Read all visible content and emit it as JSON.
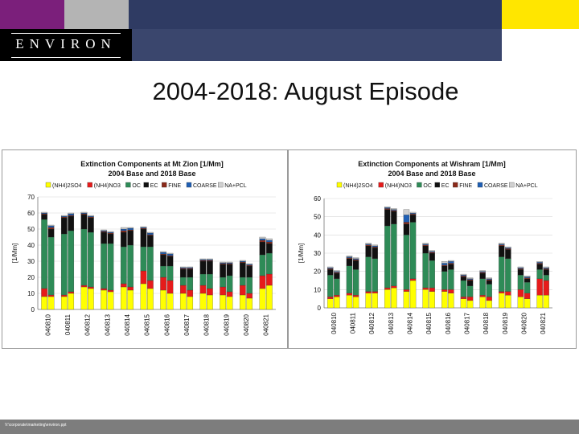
{
  "header": {
    "logo": "ENVIRON",
    "colors": {
      "purple": "#7b1f7b",
      "gray": "#b4b4b4",
      "navy": "#2f3b63",
      "yellow": "#ffe600"
    }
  },
  "slide": {
    "title": "2004-2018: August Episode"
  },
  "footer": {
    "path": "V:\\corporate\\marketing\\environ.ppt"
  },
  "legend": [
    {
      "name": "(NH4)2SO4",
      "color": "#ffff00"
    },
    {
      "name": "(NH4)NO3",
      "color": "#e61b1b"
    },
    {
      "name": "OC",
      "color": "#2e8b57"
    },
    {
      "name": "EC",
      "color": "#111111"
    },
    {
      "name": "FINE",
      "color": "#8b2a1a"
    },
    {
      "name": "COARSE",
      "color": "#1f5fb4"
    },
    {
      "name": "NA+PCL",
      "color": "#d0d0d0"
    }
  ],
  "chart_data": [
    {
      "type": "bar",
      "stacked": true,
      "title": "Extinction Components at Mt Zion [1/Mm]",
      "subtitle": "2004 Base and 2018 Base",
      "ylabel": "[1/Mm]",
      "ylim": [
        0,
        70
      ],
      "yticks": [
        0,
        10,
        20,
        30,
        40,
        50,
        60,
        70
      ],
      "categories": [
        "040810",
        "040811",
        "040812",
        "040813",
        "040814",
        "040815",
        "040816",
        "040817",
        "040818",
        "040819",
        "040820",
        "040821"
      ],
      "groups": [
        "2004",
        "2018"
      ],
      "series_names": [
        "(NH4)2SO4",
        "(NH4)NO3",
        "OC",
        "EC",
        "FINE",
        "COARSE",
        "NA+PCL"
      ],
      "data": [
        [
          [
            8,
            5,
            43,
            3,
            0.5,
            0.5,
            0.5
          ],
          [
            8,
            1,
            36,
            5,
            1,
            1,
            0.5
          ]
        ],
        [
          [
            8,
            1,
            38,
            10,
            0.5,
            0.5,
            0.5
          ],
          [
            10,
            1,
            38,
            9,
            0.5,
            1,
            0.5
          ]
        ],
        [
          [
            14,
            1,
            35,
            9,
            0.5,
            0.5,
            0.5
          ],
          [
            13,
            1,
            34,
            9,
            0.5,
            0.5,
            0.5
          ]
        ],
        [
          [
            12,
            1,
            28,
            7,
            0.5,
            0.5,
            0.5
          ],
          [
            11,
            1,
            29,
            6,
            0.5,
            0.5,
            0.5
          ]
        ],
        [
          [
            14,
            2,
            23,
            9,
            1,
            1,
            1
          ],
          [
            12,
            2,
            26,
            9,
            0.5,
            1,
            0.5
          ]
        ],
        [
          [
            16,
            8,
            15,
            11,
            0.5,
            0.5,
            0.5
          ],
          [
            13,
            5,
            21,
            7,
            0.5,
            1,
            0.5
          ]
        ],
        [
          [
            12,
            8,
            7,
            7,
            0.5,
            1,
            0.5
          ],
          [
            10,
            8,
            9,
            6,
            0.5,
            1,
            0.5
          ]
        ],
        [
          [
            10,
            5,
            5,
            5,
            0.5,
            0.5,
            0.5
          ],
          [
            8,
            4,
            8,
            5,
            0.5,
            0.5,
            0.5
          ]
        ],
        [
          [
            10,
            5,
            7,
            8,
            0.5,
            0.5,
            0.5
          ],
          [
            9,
            4,
            9,
            8,
            0.5,
            0.5,
            0.5
          ]
        ],
        [
          [
            9,
            5,
            6,
            8,
            0.5,
            0.5,
            0.5
          ],
          [
            8,
            3,
            10,
            7,
            0.5,
            0.5,
            0.5
          ]
        ],
        [
          [
            9,
            6,
            5,
            9,
            0.5,
            0.5,
            0.5
          ],
          [
            7,
            3,
            10,
            7,
            0.5,
            0.5,
            0.5
          ]
        ],
        [
          [
            13,
            8,
            13,
            8,
            1,
            1,
            1
          ],
          [
            15,
            7,
            13,
            6,
            1,
            1,
            1
          ]
        ]
      ]
    },
    {
      "type": "bar",
      "stacked": true,
      "title": "Extinction Components at Wishram [1/Mm]",
      "subtitle": "2004 Base and 2018 Base",
      "ylabel": "[1/Mm]",
      "ylim": [
        0,
        60
      ],
      "yticks": [
        0,
        10,
        20,
        30,
        40,
        50,
        60
      ],
      "categories": [
        "040810",
        "040811",
        "040812",
        "040813",
        "040814",
        "040815",
        "040816",
        "040817",
        "040818",
        "040819",
        "040820",
        "040821"
      ],
      "groups": [
        "2004",
        "2018"
      ],
      "series_names": [
        "(NH4)2SO4",
        "(NH4)NO3",
        "OC",
        "EC",
        "FINE",
        "COARSE",
        "NA+PCL"
      ],
      "data": [
        [
          [
            5,
            1,
            12,
            3,
            0.5,
            0.5,
            0.5
          ],
          [
            6,
            1,
            9,
            3,
            0.5,
            0.5,
            0.5
          ]
        ],
        [
          [
            7,
            1,
            15,
            4,
            0.5,
            0.5,
            0.5
          ],
          [
            6,
            1,
            14,
            5,
            0.5,
            0.5,
            0.5
          ]
        ],
        [
          [
            8,
            1,
            19,
            6,
            0.5,
            0.5,
            0.5
          ],
          [
            8,
            1,
            18,
            6,
            0.5,
            0.5,
            0.5
          ]
        ],
        [
          [
            10,
            1,
            34,
            9,
            0.5,
            0.5,
            0.5
          ],
          [
            11,
            1,
            34,
            7,
            0.5,
            0.5,
            0.5
          ]
        ],
        [
          [
            9,
            1,
            30,
            6,
            1,
            4,
            3
          ],
          [
            15,
            1,
            31,
            4,
            0.5,
            0.5,
            0.5
          ]
        ],
        [
          [
            10,
            1,
            19,
            4,
            0.5,
            0.5,
            0.5
          ],
          [
            9,
            2,
            15,
            4,
            0.5,
            0.5,
            0.5
          ]
        ],
        [
          [
            9,
            1,
            10,
            3,
            0.5,
            1,
            1
          ],
          [
            8,
            2,
            11,
            3,
            0.5,
            1,
            0.5
          ]
        ],
        [
          [
            5,
            1,
            9,
            2,
            0.5,
            0.5,
            0.5
          ],
          [
            4,
            2,
            6,
            3,
            0.5,
            0.5,
            0.5
          ]
        ],
        [
          [
            6,
            1,
            9,
            3,
            0.5,
            0.5,
            0.5
          ],
          [
            4,
            2,
            7,
            2,
            0.5,
            0.5,
            0.5
          ]
        ],
        [
          [
            8,
            1,
            19,
            6,
            0.5,
            0.5,
            0.5
          ],
          [
            7,
            2,
            18,
            5,
            0.5,
            0.5,
            0.5
          ]
        ],
        [
          [
            6,
            4,
            8,
            3,
            0.5,
            0.5,
            0.5
          ],
          [
            5,
            3,
            6,
            2,
            0.5,
            0.5,
            0.5
          ]
        ],
        [
          [
            7,
            9,
            5,
            3,
            0.5,
            0.5,
            0.5
          ],
          [
            7,
            8,
            3,
            3,
            0.5,
            0.5,
            0.5
          ]
        ]
      ]
    }
  ]
}
